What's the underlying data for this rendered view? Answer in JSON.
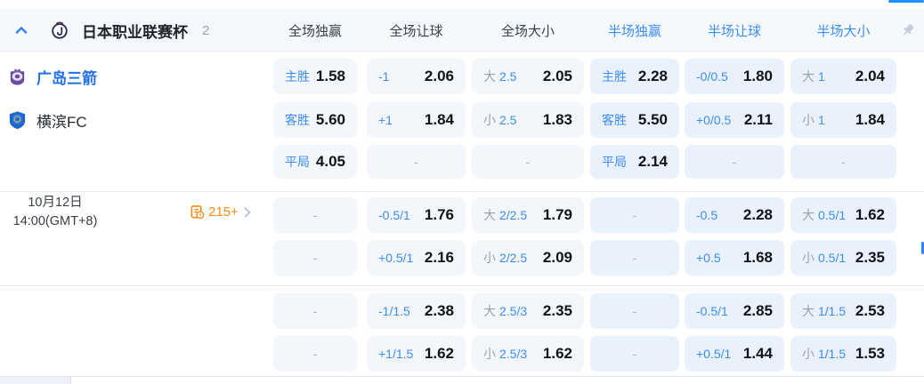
{
  "league_header": {
    "name": "日本职业联赛杯",
    "match_count": "2",
    "collapse_icon": "chevron-up-icon",
    "pin_icon": "pin-icon",
    "columns": [
      {
        "label": "全场独赢",
        "scope": "full"
      },
      {
        "label": "全场让球",
        "scope": "full"
      },
      {
        "label": "全场大小",
        "scope": "full"
      },
      {
        "label": "半场独赢",
        "scope": "half"
      },
      {
        "label": "半场让球",
        "scope": "half"
      },
      {
        "label": "半场大小",
        "scope": "half"
      }
    ]
  },
  "match": {
    "home_team": "广岛三箭",
    "away_team": "横滨FC",
    "date": "10月12日",
    "time": "14:00(GMT+8)",
    "extra_markets_count": "215+",
    "extra_markets_icon": "document-clock-icon"
  },
  "odds_rows": [
    {
      "cells": [
        {
          "type": "result",
          "label": "主胜",
          "odds": "1.58"
        },
        {
          "type": "handicap",
          "label": "-1",
          "odds": "2.06"
        },
        {
          "type": "overunder",
          "prefix": "大",
          "line": "2.5",
          "odds": "2.05"
        },
        {
          "type": "result",
          "label": "主胜",
          "odds": "2.28"
        },
        {
          "type": "handicap",
          "label": "-0/0.5",
          "odds": "1.80"
        },
        {
          "type": "overunder",
          "prefix": "大",
          "line": "1",
          "odds": "2.04"
        }
      ]
    },
    {
      "cells": [
        {
          "type": "result",
          "label": "客胜",
          "odds": "5.60"
        },
        {
          "type": "handicap",
          "label": "+1",
          "odds": "1.84"
        },
        {
          "type": "overunder",
          "prefix": "小",
          "line": "2.5",
          "odds": "1.83"
        },
        {
          "type": "result",
          "label": "客胜",
          "odds": "5.50"
        },
        {
          "type": "handicap",
          "label": "+0/0.5",
          "odds": "2.11"
        },
        {
          "type": "overunder",
          "prefix": "小",
          "line": "1",
          "odds": "1.84"
        }
      ]
    },
    {
      "cells": [
        {
          "type": "result",
          "label": "平局",
          "odds": "4.05"
        },
        {
          "type": "empty",
          "dash": "-"
        },
        {
          "type": "empty",
          "dash": "-"
        },
        {
          "type": "result",
          "label": "平局",
          "odds": "2.14"
        },
        {
          "type": "empty",
          "dash": "-"
        },
        {
          "type": "empty",
          "dash": "-"
        }
      ]
    },
    {
      "cells": [
        {
          "type": "empty",
          "dash": "-"
        },
        {
          "type": "handicap",
          "label": "-0.5/1",
          "odds": "1.76"
        },
        {
          "type": "overunder",
          "prefix": "大",
          "line": "2/2.5",
          "odds": "1.79"
        },
        {
          "type": "empty",
          "dash": "-"
        },
        {
          "type": "handicap",
          "label": "-0.5",
          "odds": "2.28"
        },
        {
          "type": "overunder",
          "prefix": "大",
          "line": "0.5/1",
          "odds": "1.62"
        }
      ]
    },
    {
      "cells": [
        {
          "type": "empty",
          "dash": "-"
        },
        {
          "type": "handicap",
          "label": "+0.5/1",
          "odds": "2.16"
        },
        {
          "type": "overunder",
          "prefix": "小",
          "line": "2/2.5",
          "odds": "2.09"
        },
        {
          "type": "empty",
          "dash": "-"
        },
        {
          "type": "handicap",
          "label": "+0.5",
          "odds": "1.68"
        },
        {
          "type": "overunder",
          "prefix": "小",
          "line": "0.5/1",
          "odds": "2.35"
        }
      ]
    },
    {
      "cells": [
        {
          "type": "empty",
          "dash": "-"
        },
        {
          "type": "handicap",
          "label": "-1/1.5",
          "odds": "2.38"
        },
        {
          "type": "overunder",
          "prefix": "大",
          "line": "2.5/3",
          "odds": "2.35"
        },
        {
          "type": "empty",
          "dash": "-"
        },
        {
          "type": "handicap",
          "label": "-0.5/1",
          "odds": "2.85"
        },
        {
          "type": "overunder",
          "prefix": "大",
          "line": "1/1.5",
          "odds": "2.53"
        }
      ]
    },
    {
      "cells": [
        {
          "type": "empty",
          "dash": "-"
        },
        {
          "type": "handicap",
          "label": "+1/1.5",
          "odds": "1.62"
        },
        {
          "type": "overunder",
          "prefix": "小",
          "line": "2.5/3",
          "odds": "1.62"
        },
        {
          "type": "empty",
          "dash": "-"
        },
        {
          "type": "handicap",
          "label": "+0.5/1",
          "odds": "1.44"
        },
        {
          "type": "overunder",
          "prefix": "小",
          "line": "1/1.5",
          "odds": "1.53"
        }
      ]
    }
  ],
  "colors": {
    "accent_blue": "#3d8ef2",
    "orange": "#fa8c16",
    "cell_bg_full": "#f3f7fc",
    "cell_bg_half": "#e9f2fc"
  }
}
